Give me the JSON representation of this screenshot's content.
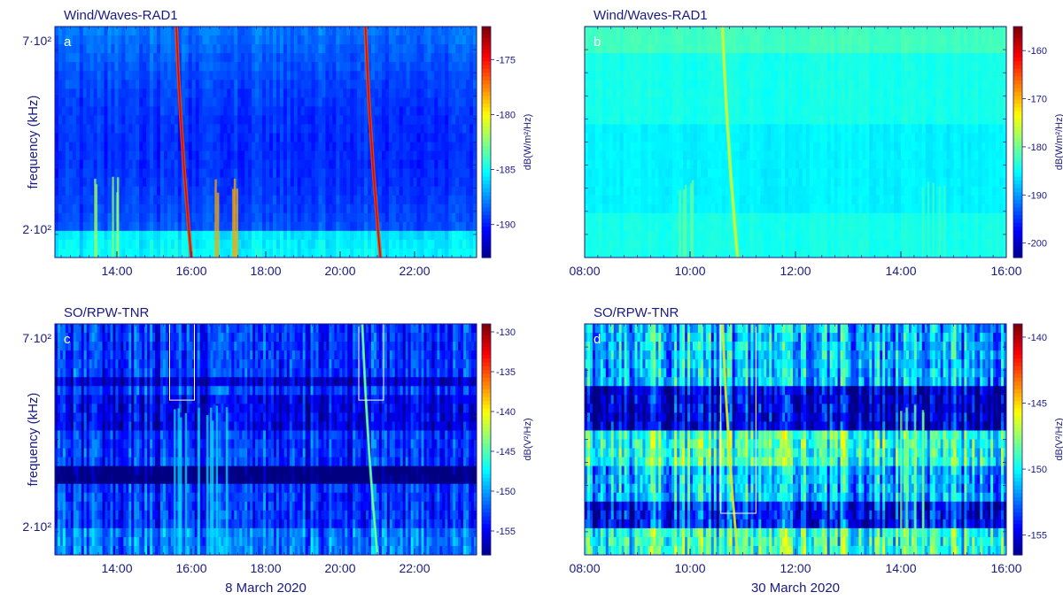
{
  "chart_data": [
    {
      "type": "heatmap",
      "panel_label": "a",
      "title": "Wind/Waves-RAD1",
      "ylabel": "frequency (kHz)",
      "y_ticks": [
        "7·10²",
        "2·10²"
      ],
      "x_ticks": [
        "14:00",
        "16:00",
        "18:00",
        "20:00",
        "22:00"
      ],
      "x_range": [
        "12:20",
        "23:40"
      ],
      "date_label": "",
      "colorbar": {
        "label": "dB(W/m²/Hz)",
        "ticks": [
          -175,
          -180,
          -185,
          -190
        ],
        "range": [
          -193,
          -172
        ]
      },
      "background_level": -188,
      "bursts": [
        {
          "time": "13:40",
          "level": -182,
          "drift": false
        },
        {
          "time": "15:40",
          "level": -176,
          "drift": true
        },
        {
          "time": "20:45",
          "level": -176,
          "drift": true
        },
        {
          "time": "16:55",
          "level": -178,
          "drift": false
        }
      ],
      "boxes": []
    },
    {
      "type": "heatmap",
      "panel_label": "b",
      "title": "Wind/Waves-RAD1",
      "ylabel": "",
      "y_ticks": [],
      "x_ticks": [
        "08:00",
        "10:00",
        "12:00",
        "14:00",
        "16:00"
      ],
      "x_range": [
        "08:00",
        "16:00"
      ],
      "date_label": "",
      "colorbar": {
        "label": "dB(W/m²/Hz)",
        "ticks": [
          -160,
          -170,
          -180,
          -190,
          -200
        ],
        "range": [
          -203,
          -155
        ]
      },
      "background_level": -184,
      "bursts": [
        {
          "time": "10:40",
          "level": -178,
          "drift": true
        },
        {
          "time": "09:50",
          "level": -180,
          "drift": false
        },
        {
          "time": "14:35",
          "level": -182,
          "drift": false
        }
      ],
      "boxes": []
    },
    {
      "type": "heatmap",
      "panel_label": "c",
      "title": "SO/RPW-TNR",
      "ylabel": "frequency (kHz)",
      "y_ticks": [
        "7·10²",
        "2·10²"
      ],
      "x_ticks": [
        "14:00",
        "16:00",
        "18:00",
        "20:00",
        "22:00"
      ],
      "x_range": [
        "12:20",
        "23:40"
      ],
      "date_label": "8 March 2020",
      "colorbar": {
        "label": "dB(V²/Hz)",
        "ticks": [
          -130,
          -135,
          -140,
          -145,
          -150,
          -155
        ],
        "range": [
          -158,
          -129
        ]
      },
      "background_level": -153,
      "bursts": [
        {
          "time": "15:50",
          "level": -148,
          "drift": false
        },
        {
          "time": "16:45",
          "level": -148,
          "drift": false
        },
        {
          "time": "20:40",
          "level": -146,
          "drift": true
        }
      ],
      "boxes": [
        {
          "t_start": "15:25",
          "t_end": "16:05"
        },
        {
          "t_start": "20:30",
          "t_end": "21:10"
        }
      ]
    },
    {
      "type": "heatmap",
      "panel_label": "d",
      "title": "SO/RPW-TNR",
      "ylabel": "",
      "y_ticks": [],
      "x_ticks": [
        "08:00",
        "10:00",
        "12:00",
        "14:00",
        "16:00"
      ],
      "x_range": [
        "08:00",
        "16:00"
      ],
      "date_label": "30 March 2020",
      "colorbar": {
        "label": "dB(V²/Hz)",
        "ticks": [
          -140,
          -145,
          -150,
          -155
        ],
        "range": [
          -156.5,
          -139
        ]
      },
      "background_level": -151,
      "bursts": [
        {
          "time": "10:40",
          "level": -147,
          "drift": true
        },
        {
          "time": "14:10",
          "level": -148,
          "drift": false
        }
      ],
      "boxes": [
        {
          "t_start": "10:35",
          "t_end": "11:15"
        }
      ]
    }
  ]
}
